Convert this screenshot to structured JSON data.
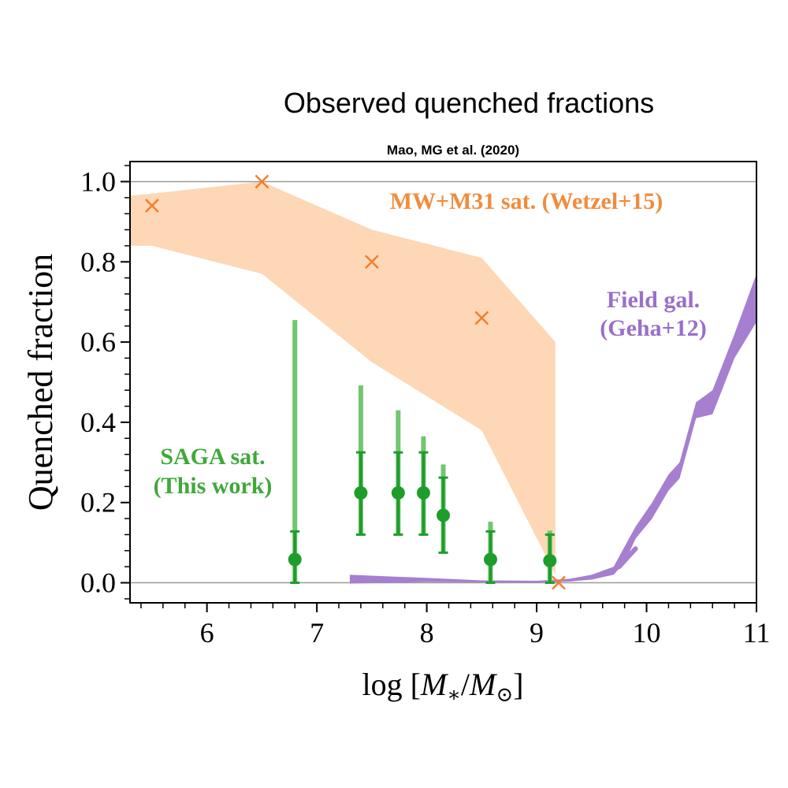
{
  "page": {
    "title": "Observed quenched fractions",
    "subtitle": "Mao, MG et al. (2020)"
  },
  "colors": {
    "mw_band": "#fdd7b6",
    "mw_marker": "#f07f2c",
    "mw_label": "#f08c3c",
    "field_band": "#a67fd0",
    "field_label": "#9a6fc8",
    "saga_point": "#1f9d2a",
    "saga_err_outer": "#71c670",
    "saga_label": "#3fa83a",
    "hline": "#9a9a9a"
  },
  "chart_data": {
    "type": "scatter",
    "xlabel_prefix": "log [",
    "xlabel_suffix": "]",
    "xlabel_num": "M",
    "xlabel_num_sub": "∗",
    "xlabel_den": "M",
    "xlabel_den_sub": "⊙",
    "ylabel": "Quenched fraction",
    "xlim": [
      5.3,
      11.0
    ],
    "ylim": [
      -0.05,
      1.05
    ],
    "xticks": [
      6,
      7,
      8,
      9,
      10,
      11
    ],
    "xtick_labels": [
      "6",
      "7",
      "8",
      "9",
      "10",
      "11"
    ],
    "yticks": [
      0.0,
      0.2,
      0.4,
      0.6,
      0.8,
      1.0
    ],
    "ytick_labels": [
      "0.0",
      "0.2",
      "0.4",
      "0.6",
      "0.8",
      "1.0"
    ],
    "hlines": [
      0.0,
      1.0
    ],
    "mw_m31": {
      "label": "MW+M31 sat. (Wetzel+15)",
      "markers": [
        {
          "x": 5.5,
          "y": 0.94
        },
        {
          "x": 6.5,
          "y": 1.0
        },
        {
          "x": 7.5,
          "y": 0.8
        },
        {
          "x": 8.5,
          "y": 0.66
        },
        {
          "x": 9.2,
          "y": 0.0
        }
      ],
      "band_upper": [
        [
          5.3,
          0.965
        ],
        [
          5.5,
          0.97
        ],
        [
          6.5,
          1.0
        ],
        [
          7.5,
          0.88
        ],
        [
          8.5,
          0.81
        ],
        [
          9.17,
          0.6
        ]
      ],
      "band_lower": [
        [
          9.17,
          0.02
        ],
        [
          8.5,
          0.38
        ],
        [
          7.5,
          0.55
        ],
        [
          6.5,
          0.77
        ],
        [
          5.5,
          0.84
        ],
        [
          5.3,
          0.84
        ]
      ]
    },
    "field": {
      "label_line1": "Field gal.",
      "label_line2": "(Geha+12)",
      "band_upper": [
        [
          7.3,
          0.02
        ],
        [
          8.0,
          0.012
        ],
        [
          8.5,
          0.006
        ],
        [
          9.0,
          0.005
        ],
        [
          9.3,
          0.01
        ],
        [
          9.5,
          0.02
        ],
        [
          9.7,
          0.04
        ],
        [
          9.8,
          0.09
        ],
        [
          9.9,
          0.14
        ],
        [
          10.05,
          0.2
        ],
        [
          10.2,
          0.27
        ],
        [
          10.3,
          0.3
        ],
        [
          10.45,
          0.45
        ],
        [
          10.6,
          0.48
        ],
        [
          10.8,
          0.62
        ],
        [
          11.0,
          0.77
        ]
      ],
      "band_lower": [
        [
          11.0,
          0.65
        ],
        [
          10.8,
          0.56
        ],
        [
          10.6,
          0.42
        ],
        [
          10.45,
          0.41
        ],
        [
          10.3,
          0.26
        ],
        [
          10.2,
          0.23
        ],
        [
          10.05,
          0.16
        ],
        [
          9.9,
          0.11
        ],
        [
          9.8,
          0.05
        ],
        [
          9.7,
          0.02
        ],
        [
          9.5,
          0.008
        ],
        [
          9.3,
          0.003
        ],
        [
          9.0,
          0.001
        ],
        [
          8.5,
          0.001
        ],
        [
          8.0,
          0.002
        ],
        [
          7.3,
          -0.002
        ]
      ],
      "spur": [
        [
          9.75,
          0.04
        ],
        [
          9.85,
          0.07
        ],
        [
          9.9,
          0.085
        ]
      ]
    },
    "saga": {
      "label_line1": "SAGA sat.",
      "label_line2": "(This work)",
      "points": [
        {
          "x": 6.8,
          "y": 0.058,
          "inner": [
            0.0,
            0.128
          ],
          "outer": [
            0.0,
            0.655
          ]
        },
        {
          "x": 7.4,
          "y": 0.224,
          "inner": [
            0.12,
            0.325
          ],
          "outer": [
            0.12,
            0.492
          ]
        },
        {
          "x": 7.74,
          "y": 0.224,
          "inner": [
            0.12,
            0.325
          ],
          "outer": [
            0.12,
            0.43
          ]
        },
        {
          "x": 7.97,
          "y": 0.224,
          "inner": [
            0.12,
            0.325
          ],
          "outer": [
            0.12,
            0.365
          ]
        },
        {
          "x": 8.15,
          "y": 0.168,
          "inner": [
            0.075,
            0.262
          ],
          "outer": [
            0.075,
            0.295
          ]
        },
        {
          "x": 8.58,
          "y": 0.058,
          "inner": [
            0.0,
            0.128
          ],
          "outer": [
            0.0,
            0.152
          ]
        },
        {
          "x": 9.12,
          "y": 0.055,
          "inner": [
            0.0,
            0.12
          ],
          "outer": [
            0.0,
            0.13
          ]
        }
      ]
    }
  }
}
